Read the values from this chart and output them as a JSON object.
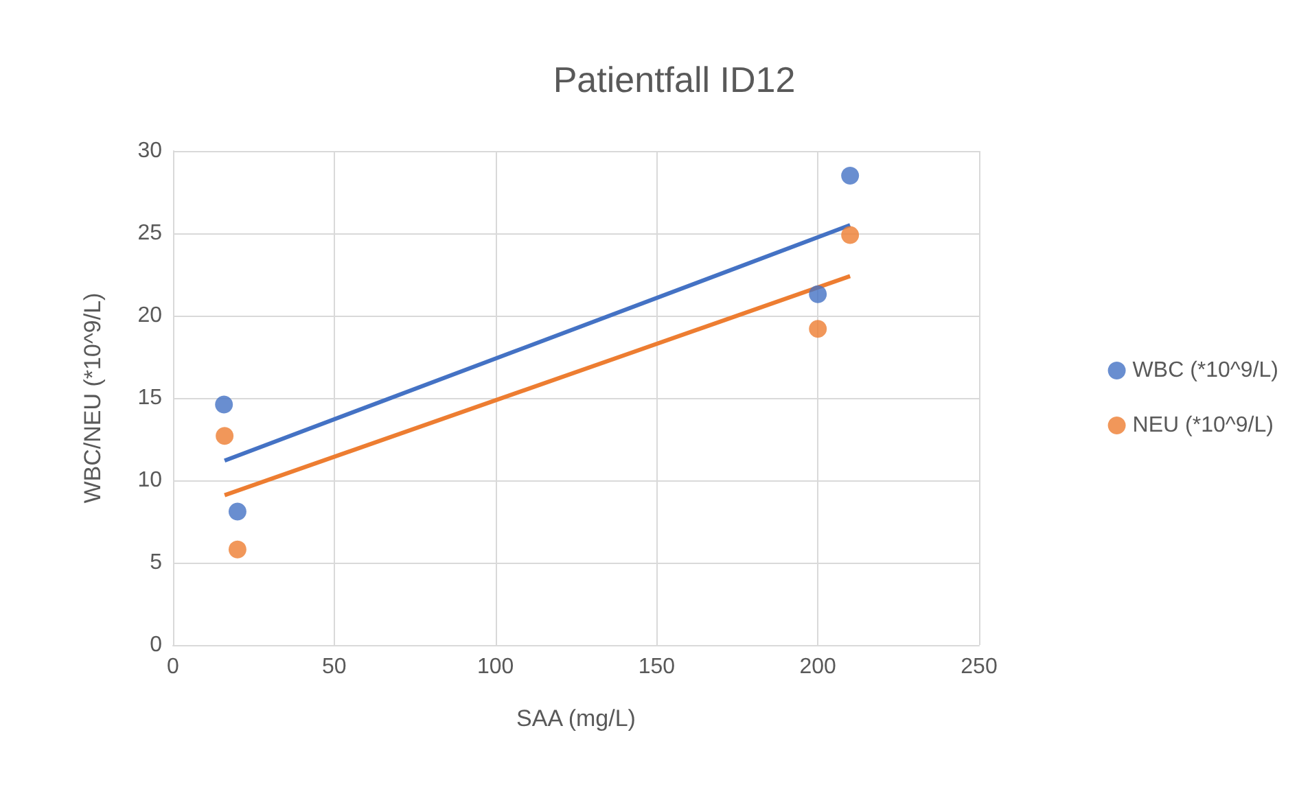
{
  "chart_data": {
    "type": "scatter",
    "title": "Patientfall ID12",
    "xlabel": "SAA (mg/L)",
    "ylabel": "WBC/NEU (*10^9/L)",
    "xlim": [
      0,
      250
    ],
    "xticks": [
      0,
      50,
      100,
      150,
      200,
      250
    ],
    "ylim": [
      0,
      30
    ],
    "yticks": [
      0,
      5,
      10,
      15,
      20,
      25,
      30
    ],
    "grid": true,
    "legend": "right",
    "marker": "circle",
    "series": [
      {
        "name": "WBC (*10^9/L)",
        "color": "#4472c4",
        "x": [
          15.8,
          20,
          200,
          210
        ],
        "values": [
          14.6,
          8.1,
          21.3,
          28.5
        ]
      },
      {
        "name": "NEU (*10^9/L)",
        "color": "#ed7d31",
        "x": [
          16,
          20,
          200,
          210
        ],
        "values": [
          12.7,
          5.8,
          19.2,
          24.9
        ]
      },
      {
        "type": "line",
        "color": "#4472c4",
        "line_style": "solid",
        "marker": "none",
        "x": [
          16,
          210
        ],
        "values": [
          11.2,
          25.5
        ]
      },
      {
        "type": "line",
        "color": "#ed7d31",
        "line_style": "solid",
        "marker": "none",
        "x": [
          16,
          210
        ],
        "values": [
          9.1,
          22.4
        ]
      }
    ]
  }
}
